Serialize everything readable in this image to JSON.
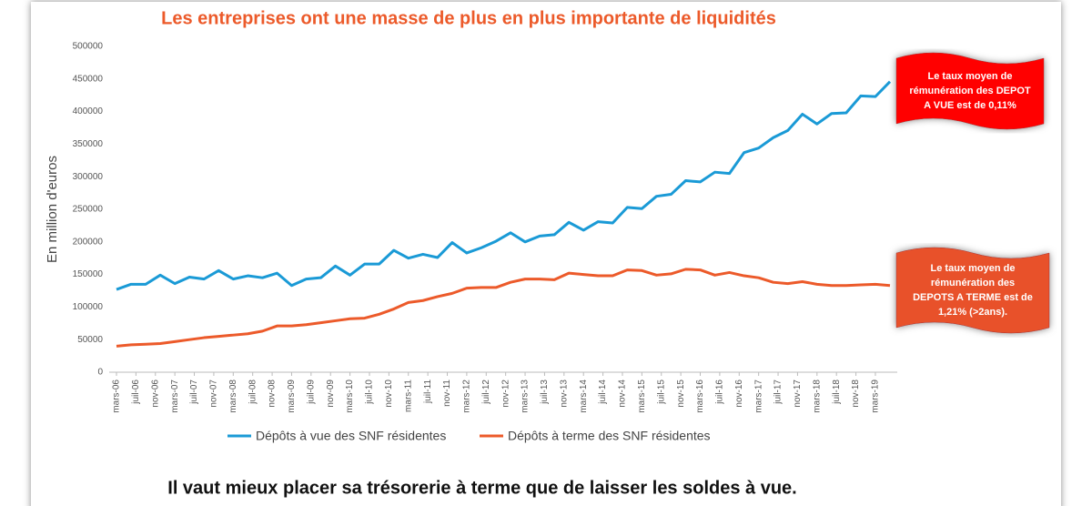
{
  "chart_data": {
    "type": "line",
    "title": "Les entreprises ont une masse de plus en plus importante de liquidités",
    "y_label": "En million d'euros",
    "footer": "Il vaut mieux placer sa trésorerie à terme que de laisser les soldes à vue.",
    "x": [
      "2006-03",
      "2006-06",
      "2006-09",
      "2006-12",
      "2007-03",
      "2007-06",
      "2007-09",
      "2007-12",
      "2008-03",
      "2008-06",
      "2008-09",
      "2008-12",
      "2009-03",
      "2009-06",
      "2009-09",
      "2009-12",
      "2010-03",
      "2010-06",
      "2010-09",
      "2010-12",
      "2011-03",
      "2011-06",
      "2011-09",
      "2011-12",
      "2012-03",
      "2012-06",
      "2012-09",
      "2012-12",
      "2013-03",
      "2013-06",
      "2013-09",
      "2013-12",
      "2014-03",
      "2014-06",
      "2014-09",
      "2014-12",
      "2015-03",
      "2015-06",
      "2015-09",
      "2015-12",
      "2016-03",
      "2016-06",
      "2016-09",
      "2016-12",
      "2017-03",
      "2017-06",
      "2017-09",
      "2017-12",
      "2018-03",
      "2018-06",
      "2018-09",
      "2018-12",
      "2019-03",
      "2019-06"
    ],
    "xlim": [
      "2006-03",
      "2019-06"
    ],
    "xticks": [
      {
        "value": "2006-03",
        "label": "mars-06"
      },
      {
        "value": "2006-07",
        "label": "juil-06"
      },
      {
        "value": "2006-11",
        "label": "nov-06"
      },
      {
        "value": "2007-03",
        "label": "mars-07"
      },
      {
        "value": "2007-07",
        "label": "juil-07"
      },
      {
        "value": "2007-11",
        "label": "nov-07"
      },
      {
        "value": "2008-03",
        "label": "mars-08"
      },
      {
        "value": "2008-07",
        "label": "juil-08"
      },
      {
        "value": "2008-11",
        "label": "nov-08"
      },
      {
        "value": "2009-03",
        "label": "mars-09"
      },
      {
        "value": "2009-07",
        "label": "juil-09"
      },
      {
        "value": "2009-11",
        "label": "nov-09"
      },
      {
        "value": "2010-03",
        "label": "mars-10"
      },
      {
        "value": "2010-07",
        "label": "juil-10"
      },
      {
        "value": "2010-11",
        "label": "nov-10"
      },
      {
        "value": "2011-03",
        "label": "mars-11"
      },
      {
        "value": "2011-07",
        "label": "juil-11"
      },
      {
        "value": "2011-11",
        "label": "nov-11"
      },
      {
        "value": "2012-03",
        "label": "mars-12"
      },
      {
        "value": "2012-07",
        "label": "juil-12"
      },
      {
        "value": "2012-11",
        "label": "nov-12"
      },
      {
        "value": "2013-03",
        "label": "mars-13"
      },
      {
        "value": "2013-07",
        "label": "juil-13"
      },
      {
        "value": "2013-11",
        "label": "nov-13"
      },
      {
        "value": "2014-03",
        "label": "mars-14"
      },
      {
        "value": "2014-07",
        "label": "juil-14"
      },
      {
        "value": "2014-11",
        "label": "nov-14"
      },
      {
        "value": "2015-03",
        "label": "mars-15"
      },
      {
        "value": "2015-07",
        "label": "juil-15"
      },
      {
        "value": "2015-11",
        "label": "nov-15"
      },
      {
        "value": "2016-03",
        "label": "mars-16"
      },
      {
        "value": "2016-07",
        "label": "juil-16"
      },
      {
        "value": "2016-11",
        "label": "nov-16"
      },
      {
        "value": "2017-03",
        "label": "mars-17"
      },
      {
        "value": "2017-07",
        "label": "juil-17"
      },
      {
        "value": "2017-11",
        "label": "nov-17"
      },
      {
        "value": "2018-03",
        "label": "mars-18"
      },
      {
        "value": "2018-07",
        "label": "juil-18"
      },
      {
        "value": "2018-11",
        "label": "nov-18"
      },
      {
        "value": "2019-03",
        "label": "mars-19"
      }
    ],
    "ylim": [
      0,
      500000
    ],
    "yticks": [
      0,
      50000,
      100000,
      150000,
      200000,
      250000,
      300000,
      350000,
      400000,
      450000,
      500000
    ],
    "series": [
      {
        "name": "Dépôts à vue des SNF résidentes",
        "color": "#1a9ad6",
        "values": [
          127000,
          135000,
          135000,
          149000,
          136000,
          146000,
          143000,
          156000,
          143000,
          148000,
          145000,
          152000,
          133000,
          143000,
          145000,
          163000,
          149000,
          166000,
          166000,
          187000,
          175000,
          181000,
          176000,
          199000,
          183000,
          191000,
          201000,
          214000,
          200000,
          209000,
          211000,
          230000,
          218000,
          231000,
          229000,
          253000,
          251000,
          270000,
          273000,
          294000,
          292000,
          307000,
          305000,
          337000,
          344000,
          360000,
          371000,
          396000,
          381000,
          397000,
          398000,
          424000,
          423000,
          446000
        ]
      },
      {
        "name": "Dépôts à terme des SNF résidentes",
        "color": "#ec5a2a",
        "values": [
          40000,
          42000,
          43000,
          44000,
          47000,
          50000,
          53000,
          55000,
          57000,
          59000,
          63000,
          71000,
          71000,
          73000,
          76000,
          79000,
          82000,
          83000,
          89000,
          97000,
          107000,
          110000,
          116000,
          121000,
          129000,
          130000,
          130000,
          138000,
          143000,
          143000,
          142000,
          152000,
          150000,
          148000,
          148000,
          157000,
          156000,
          149000,
          151000,
          158000,
          157000,
          149000,
          153000,
          148000,
          145000,
          138000,
          136000,
          139000,
          135000,
          133000,
          133000,
          134000,
          135000,
          133000
        ]
      }
    ],
    "annotations": [
      {
        "lines": [
          "Le taux moyen de",
          "rémunération des DEPOT",
          "A VUE est de 0,11%"
        ],
        "color": "#ff0000"
      },
      {
        "lines": [
          "Le taux moyen de",
          "rémunération des",
          "DEPOTS A TERME est de",
          "1,21% (>2ans)."
        ],
        "color": "#e8512a"
      }
    ],
    "grid": false
  }
}
